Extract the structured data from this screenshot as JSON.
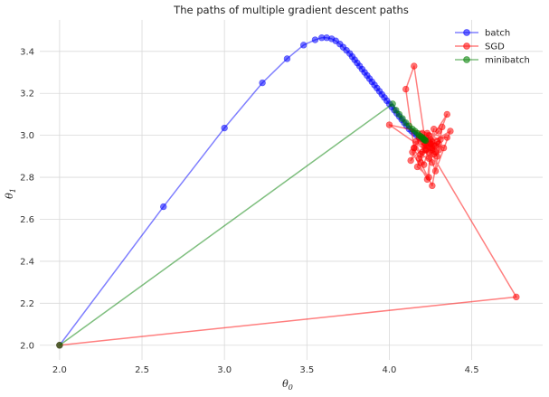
{
  "chart_data": {
    "type": "line",
    "title": "The paths of multiple gradient descent paths",
    "xlabel": "θ",
    "xlabel_sub": "0",
    "ylabel": "θ",
    "ylabel_sub": "1",
    "xlim": [
      1.88,
      4.93
    ],
    "ylim": [
      1.93,
      3.55
    ],
    "xticks": [
      2.0,
      2.5,
      3.0,
      3.5,
      4.0,
      4.5
    ],
    "xtick_labels": [
      "2.0",
      "2.5",
      "3.0",
      "3.5",
      "4.0",
      "4.5"
    ],
    "yticks": [
      2.0,
      2.2,
      2.4,
      2.6,
      2.8,
      3.0,
      3.2,
      3.4
    ],
    "ytick_labels": [
      "2.0",
      "2.2",
      "2.4",
      "2.6",
      "2.8",
      "3.0",
      "3.2",
      "3.4"
    ],
    "grid": true,
    "legend_position": "top-right",
    "series": [
      {
        "name": "batch",
        "color": "#0000ff",
        "x": [
          2.0,
          2.63,
          3.0,
          3.23,
          3.38,
          3.48,
          3.55,
          3.59,
          3.62,
          3.65,
          3.675,
          3.7,
          3.72,
          3.74,
          3.76,
          3.775,
          3.79,
          3.805,
          3.82,
          3.835,
          3.85,
          3.865,
          3.88,
          3.895,
          3.91,
          3.925,
          3.94,
          3.955,
          3.97,
          3.985,
          4.0,
          4.015,
          4.03,
          4.045,
          4.06,
          4.075,
          4.09,
          4.105,
          4.12,
          4.135,
          4.15,
          4.165,
          4.18,
          4.195,
          4.21
        ],
        "y": [
          2.0,
          2.66,
          3.035,
          3.25,
          3.365,
          3.43,
          3.455,
          3.465,
          3.465,
          3.46,
          3.45,
          3.435,
          3.42,
          3.405,
          3.39,
          3.375,
          3.36,
          3.345,
          3.33,
          3.315,
          3.3,
          3.285,
          3.27,
          3.255,
          3.24,
          3.225,
          3.21,
          3.195,
          3.18,
          3.165,
          3.15,
          3.135,
          3.12,
          3.105,
          3.09,
          3.075,
          3.06,
          3.045,
          3.03,
          3.02,
          3.01,
          3.0,
          2.99,
          2.985,
          2.98
        ]
      },
      {
        "name": "SGD",
        "color": "#ff0000",
        "x": [
          2.0,
          4.77,
          4.22,
          4.15,
          4.1,
          4.15,
          4.19,
          4.26,
          4.3,
          4.32,
          4.35,
          4.25,
          4.24,
          4.17,
          4.22,
          4.3,
          4.13,
          4.2,
          4.28,
          4.37,
          4.26,
          4.23,
          4.14,
          4.18,
          4.29,
          4.25,
          4.27,
          4.21,
          4.16,
          4.35,
          4.0,
          4.22,
          4.24,
          4.28,
          4.19,
          4.31,
          4.24,
          4.26,
          4.15,
          4.2,
          4.29,
          4.23,
          4.27,
          4.18,
          4.25,
          4.33,
          4.22,
          4.26,
          4.24,
          4.21,
          4.28,
          4.23,
          4.25,
          4.3,
          4.22,
          4.19,
          4.27,
          4.24,
          4.26
        ],
        "y": [
          2.0,
          2.23,
          2.96,
          3.33,
          3.22,
          2.94,
          2.87,
          2.76,
          2.93,
          3.04,
          3.1,
          2.98,
          2.8,
          2.85,
          2.95,
          3.02,
          2.88,
          3.01,
          2.83,
          3.02,
          2.97,
          2.79,
          2.92,
          2.99,
          2.9,
          2.96,
          3.03,
          2.86,
          2.97,
          2.99,
          3.05,
          2.93,
          2.89,
          2.95,
          2.91,
          2.98,
          3.0,
          2.87,
          2.94,
          2.92,
          2.97,
          2.95,
          2.91,
          2.89,
          2.96,
          2.94,
          2.99,
          2.93,
          2.97,
          2.95,
          2.92,
          3.01,
          2.94,
          2.96,
          2.93,
          2.97,
          2.95,
          2.92,
          2.94
        ]
      },
      {
        "name": "minibatch",
        "color": "#008000",
        "x": [
          2.0,
          4.02,
          4.04,
          4.06,
          4.08,
          4.1,
          4.12,
          4.14,
          4.155,
          4.17,
          4.18,
          4.19,
          4.2,
          4.205,
          4.21,
          4.215,
          4.22
        ],
        "y": [
          2.0,
          3.15,
          3.12,
          3.1,
          3.08,
          3.06,
          3.045,
          3.03,
          3.02,
          3.01,
          3.0,
          2.995,
          2.99,
          2.985,
          2.98,
          2.978,
          2.975
        ]
      }
    ]
  }
}
